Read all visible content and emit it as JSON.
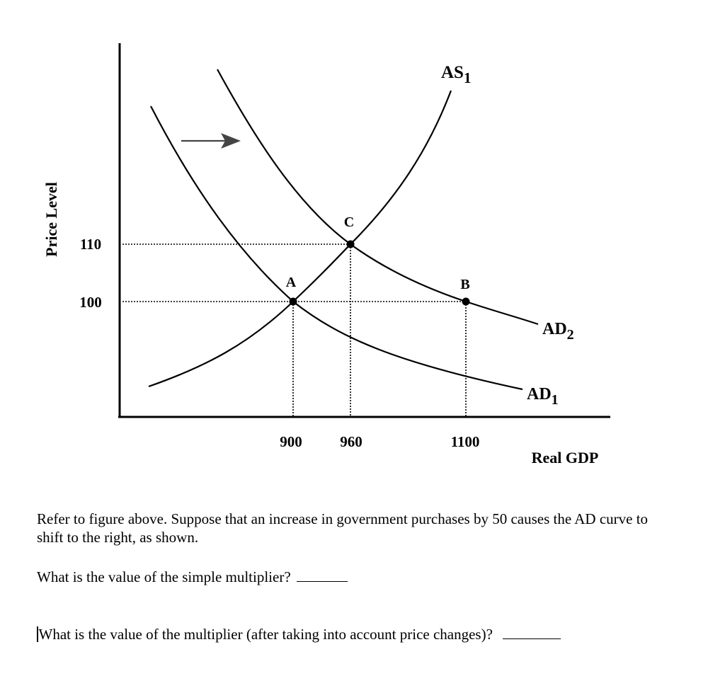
{
  "chart_data": {
    "type": "line",
    "ylabel": "Price Level",
    "xlabel": "Real GDP",
    "x_ticks": [
      900,
      960,
      1100
    ],
    "y_ticks": [
      100,
      110
    ],
    "series": [
      {
        "name": "AS1",
        "points": [
          [
            900,
            100
          ],
          [
            960,
            110
          ]
        ]
      },
      {
        "name": "AD1",
        "points": [
          [
            900,
            100
          ]
        ]
      },
      {
        "name": "AD2",
        "points": [
          [
            960,
            110
          ],
          [
            1100,
            100
          ]
        ]
      }
    ],
    "labeled_points": [
      {
        "label": "A",
        "x": 900,
        "y": 100
      },
      {
        "label": "C",
        "x": 960,
        "y": 110
      },
      {
        "label": "B",
        "x": 1100,
        "y": 100
      }
    ],
    "curve_labels": {
      "AS1": {
        "base": "AS",
        "sub": "1"
      },
      "AD1": {
        "base": "AD",
        "sub": "1"
      },
      "AD2": {
        "base": "AD",
        "sub": "2"
      }
    },
    "shift_arrow": "right",
    "grid": false
  },
  "question": {
    "intro": "Refer to figure above. Suppose that an increase in government purchases by 50 causes the AD curve to shift to the right, as shown.",
    "q1": "What is the value of the simple multiplier?",
    "q2": "What is the value of the multiplier (after taking into account price changes)?"
  }
}
